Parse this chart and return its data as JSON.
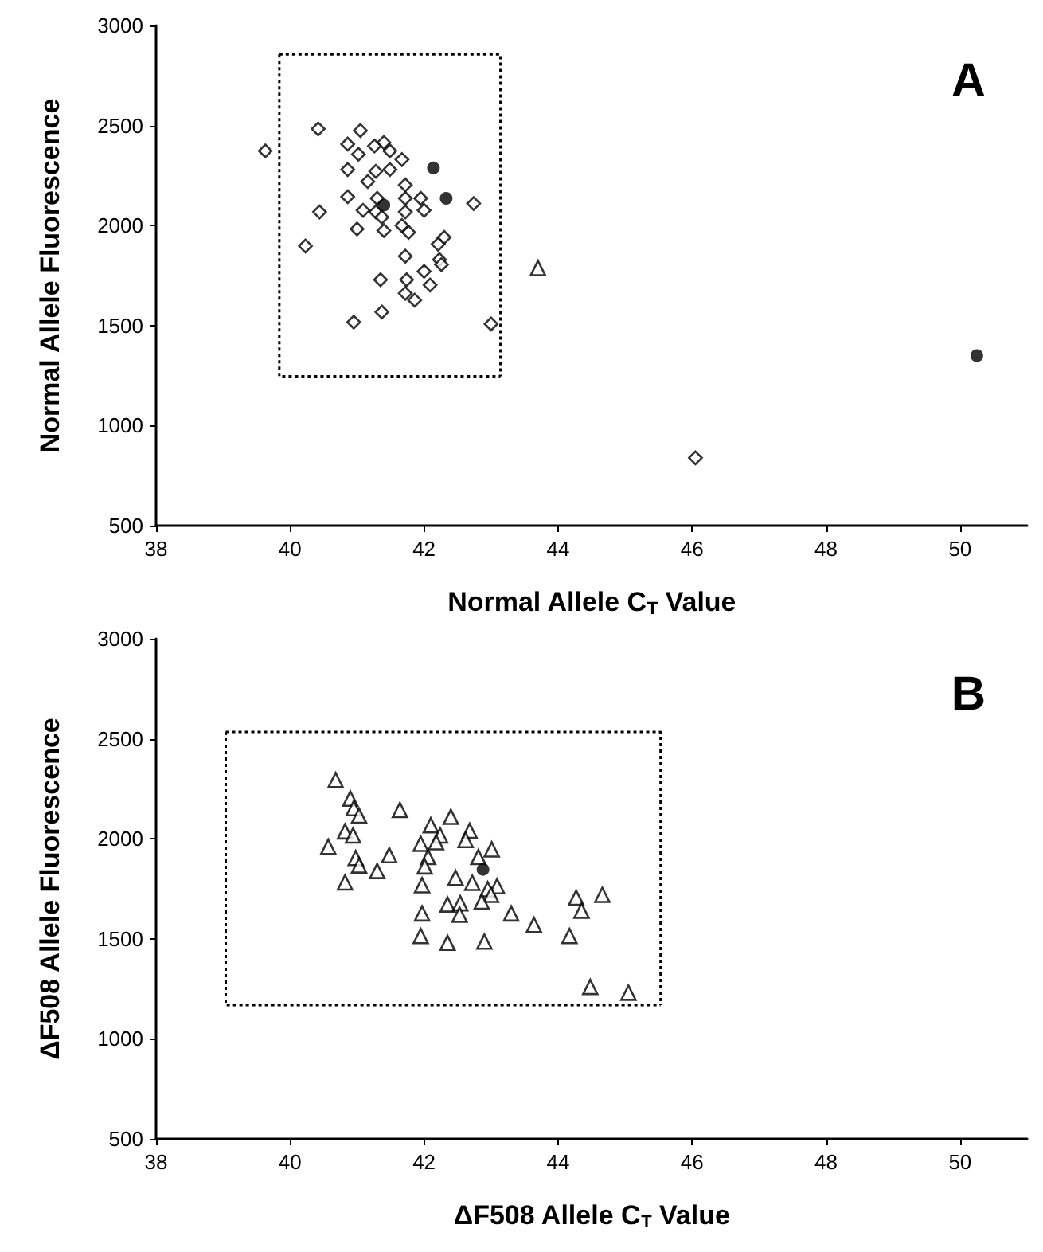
{
  "chart_data": [
    {
      "type": "scatter",
      "ylabel": "Normal Allele Fluorescence",
      "xlabel": "Normal Allele C$_{T}$ Value",
      "annotations": [
        "A"
      ],
      "xlim": [
        38,
        51
      ],
      "xticks": [
        38,
        40,
        42,
        44,
        46,
        48,
        50
      ],
      "ylim": [
        500,
        3000
      ],
      "yticks": [
        500,
        1000,
        1500,
        2000,
        2500,
        3000
      ],
      "grid": false,
      "series": [
        {
          "marker": "diamond",
          "color": "#000000",
          "x": [
            39.63,
            46.05,
            40.42,
            41.05,
            40.86,
            41.4,
            41.26,
            41.49,
            41.02,
            41.67,
            40.86,
            41.49,
            41.28,
            41.16,
            41.72,
            40.86,
            41.3,
            41.72,
            41.95,
            40.44,
            41.09,
            41.28,
            41.72,
            42.0,
            42.74,
            41.0,
            41.4,
            41.67,
            41.77,
            42.3,
            42.21,
            40.23,
            41.72,
            42.23,
            42.26,
            41.35,
            41.74,
            42.0,
            42.09,
            41.72,
            41.86,
            41.37,
            40.95,
            43.0,
            41.37
          ],
          "values": [
            2373,
            839,
            2483,
            2475,
            2407,
            2415,
            2398,
            2373,
            2356,
            2330,
            2280,
            2280,
            2271,
            2220,
            2203,
            2144,
            2136,
            2136,
            2136,
            2068,
            2076,
            2068,
            2068,
            2076,
            2110,
            1983,
            1975,
            2000,
            1966,
            1941,
            1907,
            1898,
            1847,
            1830,
            1805,
            1729,
            1729,
            1771,
            1703,
            1661,
            1627,
            1568,
            1517,
            1508,
            2042
          ]
        },
        {
          "marker": "circle",
          "color": "#000000",
          "x": [
            42.14,
            42.33,
            41.4,
            50.25
          ],
          "values": [
            2288,
            2136,
            2102,
            1350
          ]
        },
        {
          "marker": "triangle",
          "color": "#000000",
          "x": [
            43.7
          ],
          "values": [
            1788
          ]
        },
        {
          "type": "line",
          "marker": "none",
          "line_style": "dotted",
          "color": "#000000",
          "x": [
            39.84,
            43.14,
            43.14
          ],
          "values": [
            2856,
            2856,
            1246
          ]
        },
        {
          "type": "line",
          "marker": "none",
          "line_style": "dotted",
          "color": "#000000",
          "x": [
            39.84,
            39.84,
            43.14
          ],
          "values": [
            2856,
            1246,
            1246
          ]
        }
      ]
    },
    {
      "type": "scatter",
      "ylabel": "ΔF508 Allele Fluorescence",
      "xlabel": "ΔF508 Allele C$_{T}$ Value",
      "annotations": [
        "B"
      ],
      "xlim": [
        38,
        51
      ],
      "xticks": [
        38,
        40,
        42,
        44,
        46,
        48,
        50
      ],
      "ylim": [
        500,
        3000
      ],
      "yticks": [
        500,
        1000,
        1500,
        2000,
        2500,
        3000
      ],
      "grid": false,
      "series": [
        {
          "marker": "triangle",
          "color": "#000000",
          "x": [
            40.68,
            40.9,
            40.95,
            41.03,
            41.64,
            42.4,
            42.1,
            42.68,
            40.82,
            40.94,
            42.24,
            41.95,
            42.62,
            40.57,
            42.18,
            42.06,
            43.01,
            42.81,
            41.48,
            40.98,
            41.03,
            42.01,
            41.3,
            40.82,
            42.47,
            41.97,
            42.72,
            43.09,
            42.95,
            43.0,
            42.35,
            42.54,
            42.86,
            41.97,
            42.53,
            43.3,
            43.64,
            44.27,
            44.66,
            44.35,
            44.17,
            41.95,
            42.35,
            42.9,
            44.48,
            45.05
          ],
          "values": [
            2294,
            2201,
            2153,
            2116,
            2144,
            2110,
            2068,
            2040,
            2037,
            2017,
            2017,
            1975,
            1994,
            1960,
            1983,
            1909,
            1947,
            1909,
            1918,
            1904,
            1867,
            1862,
            1839,
            1782,
            1805,
            1768,
            1780,
            1763,
            1748,
            1720,
            1672,
            1678,
            1686,
            1627,
            1621,
            1627,
            1570,
            1706,
            1720,
            1641,
            1514,
            1514,
            1480,
            1486,
            1260,
            1231
          ]
        },
        {
          "marker": "circle",
          "color": "#000000",
          "x": [
            42.88
          ],
          "values": [
            1847
          ]
        },
        {
          "type": "line",
          "marker": "none",
          "line_style": "dotted",
          "color": "#000000",
          "x": [
            39.04,
            45.53,
            45.53
          ],
          "values": [
            2534,
            2534,
            1169
          ]
        },
        {
          "type": "line",
          "marker": "none",
          "line_style": "dotted",
          "color": "#000000",
          "x": [
            39.04,
            39.04,
            45.53
          ],
          "values": [
            2534,
            1169,
            1169
          ]
        }
      ]
    }
  ]
}
